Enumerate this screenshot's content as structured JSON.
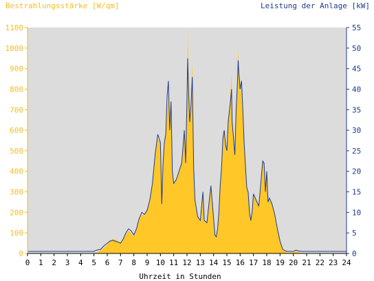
{
  "chart_data": {
    "type": "area",
    "title_left": "Bestrahlungsstärke [W/qm]",
    "title_right": "Leistung der Anlage [kW]",
    "xlabel": "Uhrzeit in Stunden",
    "x_ticks": [
      "0",
      "1",
      "2",
      "3",
      "4",
      "5",
      "6",
      "7",
      "8",
      "9",
      "10",
      "11",
      "12",
      "13",
      "14",
      "15",
      "16",
      "17",
      "18",
      "19",
      "20",
      "21",
      "22",
      "23",
      "24"
    ],
    "y_left_ticks": [
      "0",
      "100",
      "200",
      "300",
      "400",
      "500",
      "600",
      "700",
      "800",
      "900",
      "1000",
      "1100"
    ],
    "y_right_ticks": [
      "0",
      "5",
      "10",
      "15",
      "20",
      "25",
      "30",
      "35",
      "40",
      "45",
      "50",
      "55"
    ],
    "ylim_left": [
      0,
      1100
    ],
    "ylim_right": [
      0,
      55
    ],
    "xlim": [
      0,
      24
    ],
    "grid": false,
    "colors": {
      "plot_background": "#dcdcdc",
      "irradiance_fill": "#ffc728",
      "power_line": "#1f3a8a",
      "left_axis_text": "#f5bd1f",
      "right_axis_text": "#1f3a8a"
    },
    "series": [
      {
        "values": [
          [
            0,
            0
          ],
          [
            5,
            0
          ],
          [
            5.2,
            5
          ],
          [
            5.5,
            15
          ],
          [
            5.8,
            30
          ],
          [
            6,
            45
          ],
          [
            6.2,
            60
          ],
          [
            6.4,
            70
          ],
          [
            6.6,
            68
          ],
          [
            6.8,
            60
          ],
          [
            7,
            50
          ],
          [
            7.2,
            70
          ],
          [
            7.4,
            95
          ],
          [
            7.6,
            110
          ],
          [
            7.8,
            100
          ],
          [
            8,
            80
          ],
          [
            8.2,
            120
          ],
          [
            8.4,
            165
          ],
          [
            8.6,
            190
          ],
          [
            8.8,
            185
          ],
          [
            9,
            210
          ],
          [
            9.2,
            260
          ],
          [
            9.4,
            350
          ],
          [
            9.6,
            480
          ],
          [
            9.8,
            560
          ],
          [
            10,
            540
          ],
          [
            10.1,
            230
          ],
          [
            10.2,
            420
          ],
          [
            10.3,
            520
          ],
          [
            10.4,
            580
          ],
          [
            10.5,
            700
          ],
          [
            10.6,
            760
          ],
          [
            10.7,
            600
          ],
          [
            10.8,
            720
          ],
          [
            10.9,
            380
          ],
          [
            11,
            330
          ],
          [
            11.2,
            360
          ],
          [
            11.4,
            400
          ],
          [
            11.6,
            450
          ],
          [
            11.8,
            600
          ],
          [
            11.9,
            430
          ],
          [
            12,
            700
          ],
          [
            12.05,
            1100
          ],
          [
            12.1,
            930
          ],
          [
            12.2,
            640
          ],
          [
            12.3,
            720
          ],
          [
            12.4,
            940
          ],
          [
            12.5,
            420
          ],
          [
            12.6,
            260
          ],
          [
            12.8,
            180
          ],
          [
            13,
            150
          ],
          [
            13.2,
            300
          ],
          [
            13.3,
            160
          ],
          [
            13.5,
            150
          ],
          [
            13.6,
            210
          ],
          [
            13.8,
            330
          ],
          [
            14,
            170
          ],
          [
            14.1,
            80
          ],
          [
            14.2,
            70
          ],
          [
            14.3,
            120
          ],
          [
            14.4,
            200
          ],
          [
            14.5,
            330
          ],
          [
            14.6,
            420
          ],
          [
            14.7,
            560
          ],
          [
            14.8,
            600
          ],
          [
            14.9,
            530
          ],
          [
            15,
            500
          ],
          [
            15.1,
            660
          ],
          [
            15.2,
            720
          ],
          [
            15.3,
            820
          ],
          [
            15.35,
            870
          ],
          [
            15.4,
            650
          ],
          [
            15.5,
            560
          ],
          [
            15.6,
            480
          ],
          [
            15.7,
            700
          ],
          [
            15.8,
            860
          ],
          [
            15.85,
            1000
          ],
          [
            15.9,
            880
          ],
          [
            16,
            780
          ],
          [
            16.1,
            830
          ],
          [
            16.2,
            700
          ],
          [
            16.3,
            550
          ],
          [
            16.4,
            430
          ],
          [
            16.5,
            330
          ],
          [
            16.6,
            300
          ],
          [
            16.7,
            200
          ],
          [
            16.8,
            160
          ],
          [
            16.9,
            200
          ],
          [
            17,
            280
          ],
          [
            17.2,
            260
          ],
          [
            17.4,
            230
          ],
          [
            17.5,
            300
          ],
          [
            17.6,
            380
          ],
          [
            17.7,
            450
          ],
          [
            17.8,
            440
          ],
          [
            17.9,
            300
          ],
          [
            18,
            400
          ],
          [
            18.1,
            250
          ],
          [
            18.2,
            270
          ],
          [
            18.4,
            240
          ],
          [
            18.6,
            190
          ],
          [
            18.8,
            120
          ],
          [
            19,
            60
          ],
          [
            19.2,
            20
          ],
          [
            19.4,
            10
          ],
          [
            19.6,
            5
          ],
          [
            20,
            5
          ],
          [
            20.2,
            12
          ],
          [
            20.4,
            8
          ],
          [
            20.6,
            0
          ],
          [
            24,
            0
          ]
        ]
      },
      {
        "values": [
          [
            0,
            0.5
          ],
          [
            5,
            0.5
          ],
          [
            5.2,
            0.8
          ],
          [
            5.5,
            1
          ],
          [
            5.8,
            2
          ],
          [
            6,
            2.5
          ],
          [
            6.2,
            3
          ],
          [
            6.4,
            3.2
          ],
          [
            6.6,
            3
          ],
          [
            6.8,
            2.8
          ],
          [
            7,
            2.5
          ],
          [
            7.2,
            3.5
          ],
          [
            7.4,
            5
          ],
          [
            7.6,
            6
          ],
          [
            7.8,
            5.5
          ],
          [
            8,
            4.5
          ],
          [
            8.2,
            6
          ],
          [
            8.4,
            8.5
          ],
          [
            8.6,
            10
          ],
          [
            8.8,
            9.5
          ],
          [
            9,
            10.5
          ],
          [
            9.2,
            13
          ],
          [
            9.4,
            17
          ],
          [
            9.6,
            24
          ],
          [
            9.8,
            29
          ],
          [
            10,
            27
          ],
          [
            10.1,
            12
          ],
          [
            10.2,
            22
          ],
          [
            10.3,
            27
          ],
          [
            10.4,
            29
          ],
          [
            10.5,
            38
          ],
          [
            10.6,
            42
          ],
          [
            10.7,
            30
          ],
          [
            10.8,
            37
          ],
          [
            10.9,
            20
          ],
          [
            11,
            17
          ],
          [
            11.2,
            18
          ],
          [
            11.4,
            20
          ],
          [
            11.6,
            22
          ],
          [
            11.8,
            30
          ],
          [
            11.9,
            22
          ],
          [
            12,
            38
          ],
          [
            12.05,
            47.5
          ],
          [
            12.1,
            42
          ],
          [
            12.2,
            32
          ],
          [
            12.3,
            36
          ],
          [
            12.4,
            43
          ],
          [
            12.5,
            21
          ],
          [
            12.6,
            13
          ],
          [
            12.8,
            9
          ],
          [
            13,
            8
          ],
          [
            13.2,
            15
          ],
          [
            13.3,
            8
          ],
          [
            13.5,
            7.5
          ],
          [
            13.6,
            10.5
          ],
          [
            13.8,
            16.5
          ],
          [
            14,
            8.5
          ],
          [
            14.1,
            4.5
          ],
          [
            14.2,
            4
          ],
          [
            14.3,
            6
          ],
          [
            14.4,
            10
          ],
          [
            14.5,
            16.5
          ],
          [
            14.6,
            21
          ],
          [
            14.7,
            28
          ],
          [
            14.8,
            30
          ],
          [
            14.9,
            26.5
          ],
          [
            15,
            25
          ],
          [
            15.1,
            32
          ],
          [
            15.2,
            35
          ],
          [
            15.3,
            38
          ],
          [
            15.35,
            40
          ],
          [
            15.4,
            32
          ],
          [
            15.5,
            28
          ],
          [
            15.6,
            24
          ],
          [
            15.7,
            35
          ],
          [
            15.8,
            42
          ],
          [
            15.85,
            47
          ],
          [
            15.9,
            44
          ],
          [
            16,
            40
          ],
          [
            16.1,
            42
          ],
          [
            16.2,
            35
          ],
          [
            16.3,
            27
          ],
          [
            16.4,
            21
          ],
          [
            16.5,
            16
          ],
          [
            16.6,
            15
          ],
          [
            16.7,
            10
          ],
          [
            16.8,
            8
          ],
          [
            16.9,
            10
          ],
          [
            17,
            14.5
          ],
          [
            17.2,
            13
          ],
          [
            17.4,
            11.5
          ],
          [
            17.5,
            15
          ],
          [
            17.6,
            19
          ],
          [
            17.7,
            22.5
          ],
          [
            17.8,
            22
          ],
          [
            17.9,
            15
          ],
          [
            18,
            20
          ],
          [
            18.1,
            12.5
          ],
          [
            18.2,
            13.5
          ],
          [
            18.4,
            12
          ],
          [
            18.6,
            9.5
          ],
          [
            18.8,
            6
          ],
          [
            19,
            3
          ],
          [
            19.2,
            1
          ],
          [
            19.4,
            0.6
          ],
          [
            19.6,
            0.5
          ],
          [
            20,
            0.5
          ],
          [
            20.2,
            0.8
          ],
          [
            20.4,
            0.6
          ],
          [
            20.6,
            0.5
          ],
          [
            24,
            0.5
          ]
        ]
      }
    ]
  }
}
